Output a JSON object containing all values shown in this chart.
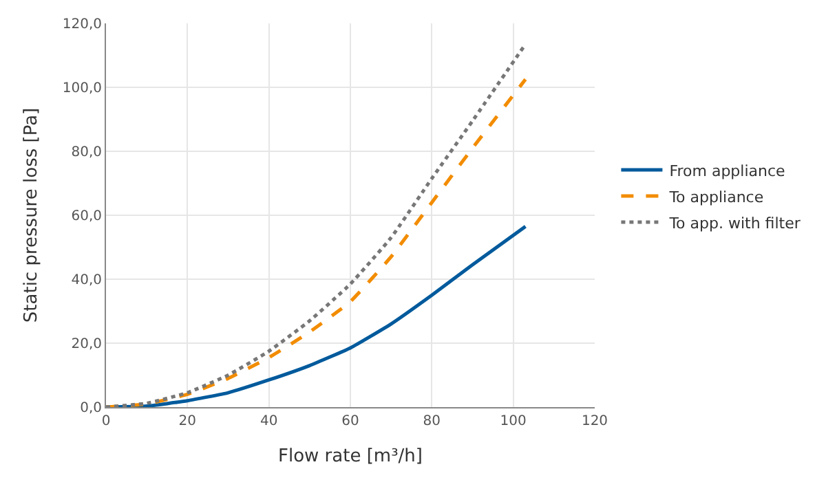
{
  "chart_data": {
    "type": "line",
    "xlabel": "Flow rate [m³/h]",
    "ylabel": "Static pressure loss [Pa]",
    "xlim": [
      0,
      120
    ],
    "xticks": [
      0,
      20,
      40,
      60,
      80,
      100,
      120
    ],
    "ylim": [
      0,
      120
    ],
    "yticks": [
      {
        "value": 0,
        "label": "0,0"
      },
      {
        "value": 20,
        "label": "20,0"
      },
      {
        "value": 40,
        "label": "40,0"
      },
      {
        "value": 60,
        "label": "60,0"
      },
      {
        "value": 80,
        "label": "80,0"
      },
      {
        "value": 100,
        "label": "100,0"
      },
      {
        "value": 120,
        "label": "120,0"
      }
    ],
    "x": [
      0,
      10,
      20,
      30,
      40,
      50,
      60,
      70,
      80,
      90,
      103
    ],
    "grid": true,
    "legend": "right",
    "series": [
      {
        "name": "From appliance",
        "color": "#005a9c",
        "line_style": "solid",
        "values": [
          0,
          0.3,
          2,
          4.5,
          8.5,
          13,
          18.5,
          26,
          35,
          44.5,
          56.5
        ]
      },
      {
        "name": "To appliance",
        "color": "#f28c00",
        "line_style": "dashed",
        "values": [
          0,
          1,
          4,
          9,
          15.5,
          23.5,
          33,
          47,
          64,
          81,
          102.5
        ]
      },
      {
        "name": "To app. with filter",
        "color": "#777777",
        "line_style": "dotted",
        "values": [
          0,
          1.2,
          4.5,
          10,
          17.5,
          27,
          38.5,
          53,
          71.5,
          89.5,
          113.5
        ]
      }
    ]
  }
}
